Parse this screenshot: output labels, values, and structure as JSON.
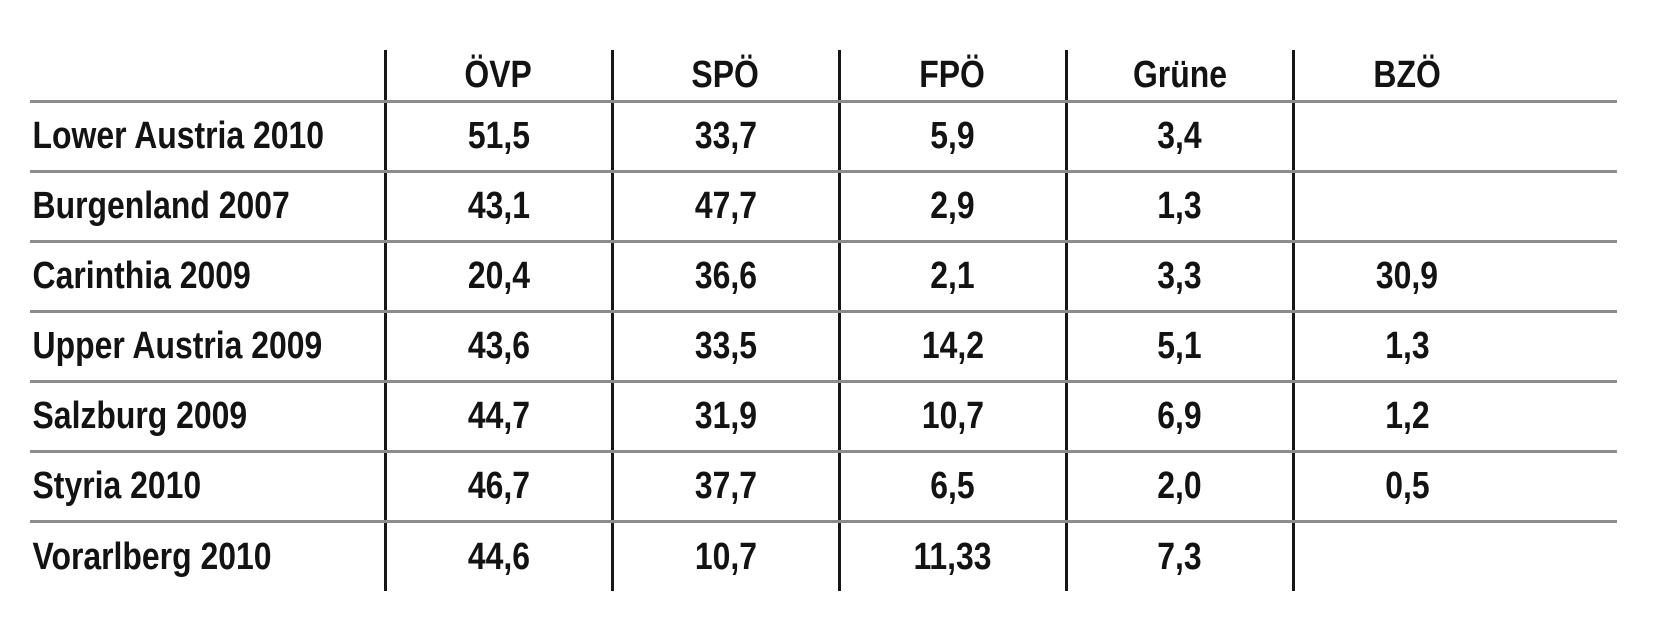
{
  "table": {
    "columns": [
      "",
      "ÖVP",
      "SPÖ",
      "FPÖ",
      "Grüne",
      "BZÖ"
    ],
    "rows": [
      {
        "label": "Lower Austria 2010",
        "values": [
          "51,5",
          "33,7",
          "5,9",
          "3,4",
          ""
        ]
      },
      {
        "label": "Burgenland 2007",
        "values": [
          "43,1",
          "47,7",
          "2,9",
          "1,3",
          ""
        ]
      },
      {
        "label": "Carinthia 2009",
        "values": [
          "20,4",
          "36,6",
          "2,1",
          "3,3",
          "30,9"
        ]
      },
      {
        "label": "Upper Austria 2009",
        "values": [
          "43,6",
          "33,5",
          "14,2",
          "5,1",
          "1,3"
        ]
      },
      {
        "label": "Salzburg 2009",
        "values": [
          "44,7",
          "31,9",
          "10,7",
          "6,9",
          "1,2"
        ]
      },
      {
        "label": "Styria 2010",
        "values": [
          "46,7",
          "37,7",
          "6,5",
          "2,0",
          "0,5"
        ]
      },
      {
        "label": "Vorarlberg 2010",
        "values": [
          "44,6",
          "10,7",
          "11,33",
          "7,3",
          ""
        ]
      }
    ]
  },
  "chart_data": {
    "type": "table",
    "title": "",
    "columns": [
      "",
      "ÖVP",
      "SPÖ",
      "FPÖ",
      "Grüne",
      "BZÖ"
    ],
    "rows": [
      [
        "Lower Austria 2010",
        51.5,
        33.7,
        5.9,
        3.4,
        null
      ],
      [
        "Burgenland 2007",
        43.1,
        47.7,
        2.9,
        1.3,
        null
      ],
      [
        "Carinthia 2009",
        20.4,
        36.6,
        2.1,
        3.3,
        30.9
      ],
      [
        "Upper Austria 2009",
        43.6,
        33.5,
        14.2,
        5.1,
        1.3
      ],
      [
        "Salzburg 2009",
        44.7,
        31.9,
        10.7,
        6.9,
        1.2
      ],
      [
        "Styria 2010",
        46.7,
        37.7,
        6.5,
        2.0,
        0.5
      ],
      [
        "Vorarlberg 2010",
        44.6,
        10.7,
        11.33,
        7.3,
        null
      ]
    ],
    "decimal_separator": ","
  },
  "colors": {
    "background": "#ffffff",
    "text": "#131313",
    "horizontal_rule": "#8c8c8c",
    "vertical_rule": "#161616"
  }
}
